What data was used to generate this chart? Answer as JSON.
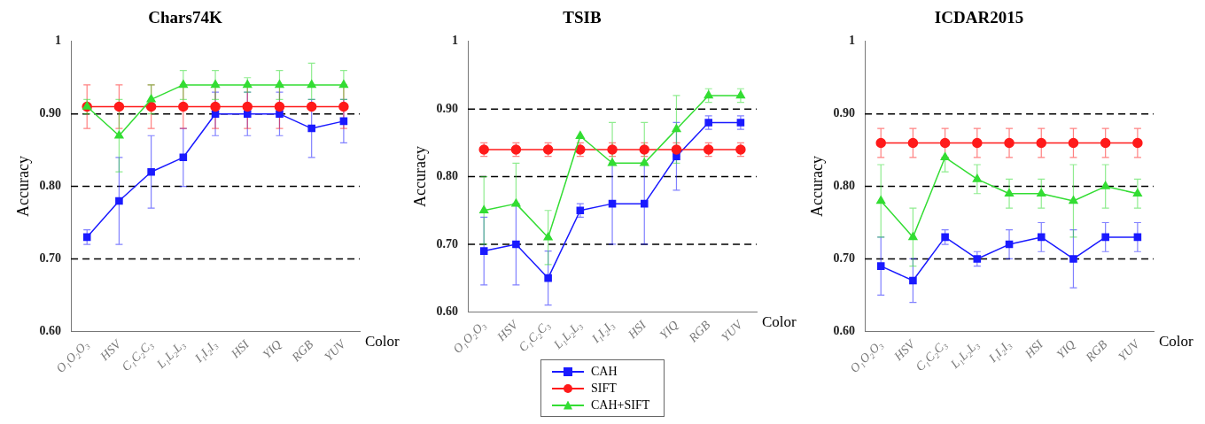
{
  "chart_data": [
    {
      "type": "line",
      "title": "Chars74K",
      "xlabel": "Color",
      "ylabel": "Accuracy",
      "categories": [
        "O₁O₂O₃",
        "HSV",
        "C₁C₂C₃",
        "L₁L₂L₃",
        "I₁I₂I₃",
        "HSI",
        "YIQ",
        "RGB",
        "YUV"
      ],
      "ylim": [
        0.6,
        1
      ],
      "yticks": [
        {
          "value": 0.6,
          "label": "0.60"
        },
        {
          "value": 0.7,
          "label": "0.70"
        },
        {
          "value": 0.8,
          "label": "0.80"
        },
        {
          "value": 0.9,
          "label": "0.90"
        },
        {
          "value": 1,
          "label": "1"
        }
      ],
      "ref_lines": [
        {
          "axis": "y",
          "value": 0.7,
          "color": "#000000",
          "line_style": "dashed"
        },
        {
          "axis": "y",
          "value": 0.8,
          "color": "#000000",
          "line_style": "dashed"
        },
        {
          "axis": "y",
          "value": 0.9,
          "color": "#000000",
          "line_style": "dashed"
        }
      ],
      "series": [
        {
          "color": "#1a1aff",
          "marker": "square",
          "values": [
            0.73,
            0.78,
            0.82,
            0.84,
            0.9,
            0.9,
            0.9,
            0.88,
            0.89
          ],
          "errors": [
            [
              0.72,
              0.74
            ],
            [
              0.72,
              0.84
            ],
            [
              0.77,
              0.87
            ],
            [
              0.8,
              0.88
            ],
            [
              0.87,
              0.93
            ],
            [
              0.87,
              0.93
            ],
            [
              0.87,
              0.93
            ],
            [
              0.84,
              0.92
            ],
            [
              0.86,
              0.92
            ]
          ]
        },
        {
          "color": "#ff1a1a",
          "marker": "circle",
          "values": [
            0.91,
            0.91,
            0.91,
            0.91,
            0.91,
            0.91,
            0.91,
            0.91,
            0.91
          ],
          "errors": [
            0.03,
            0.03,
            0.03,
            0.03,
            0.03,
            0.03,
            0.03,
            null,
            0.03
          ]
        },
        {
          "color": "#33dd33",
          "marker": "triangle",
          "values": [
            0.91,
            0.87,
            0.92,
            0.94,
            0.94,
            0.94,
            0.94,
            0.94,
            0.94
          ],
          "errors": [
            [
              0.9,
              0.92
            ],
            [
              0.82,
              0.92
            ],
            [
              0.9,
              0.94
            ],
            [
              0.92,
              0.96
            ],
            [
              0.92,
              0.96
            ],
            [
              0.93,
              0.95
            ],
            [
              0.92,
              0.96
            ],
            [
              0.92,
              0.97
            ],
            [
              0.92,
              0.96
            ]
          ]
        }
      ]
    },
    {
      "type": "line",
      "title": "TSIB",
      "xlabel": "Color",
      "ylabel": "Accuracy",
      "categories": [
        "O₁O₂O₃",
        "HSV",
        "C₁C₂C₃",
        "L₁L₂L₃",
        "I₁I₂I₃",
        "HSI",
        "YIQ",
        "RGB",
        "YUV"
      ],
      "ylim": [
        0.6,
        1
      ],
      "yticks": [
        {
          "value": 0.6,
          "label": "0.60"
        },
        {
          "value": 0.7,
          "label": "0.70"
        },
        {
          "value": 0.8,
          "label": "0.80"
        },
        {
          "value": 0.9,
          "label": "0.90"
        },
        {
          "value": 1,
          "label": "1"
        }
      ],
      "legend": "bottom",
      "ref_lines": [
        {
          "axis": "y",
          "value": 0.7,
          "color": "#000000",
          "line_style": "dashed"
        },
        {
          "axis": "y",
          "value": 0.8,
          "color": "#000000",
          "line_style": "dashed"
        },
        {
          "axis": "y",
          "value": 0.9,
          "color": "#000000",
          "line_style": "dashed"
        }
      ],
      "series": [
        {
          "name": "CAH",
          "color": "#1a1aff",
          "marker": "square",
          "values": [
            0.69,
            0.7,
            0.65,
            0.75,
            0.76,
            0.76,
            0.83,
            0.88,
            0.88
          ],
          "errors": [
            [
              0.64,
              0.74
            ],
            0.06,
            [
              0.61,
              0.69
            ],
            0.01,
            0.06,
            0.06,
            [
              0.78,
              0.88
            ],
            0.01,
            0.01
          ]
        },
        {
          "name": "SIFT",
          "color": "#ff1a1a",
          "marker": "circle",
          "values": [
            0.84,
            0.84,
            0.84,
            0.84,
            0.84,
            0.84,
            0.84,
            0.84,
            0.84
          ],
          "errors": [
            0.01,
            0.01,
            0.01,
            0.01,
            0.01,
            0.01,
            0.01,
            0.01,
            0.01
          ]
        },
        {
          "name": "CAH+SIFT",
          "color": "#33dd33",
          "marker": "triangle",
          "values": [
            0.75,
            0.76,
            0.71,
            0.86,
            0.82,
            0.82,
            0.87,
            0.92,
            0.92
          ],
          "errors": [
            [
              0.7,
              0.8
            ],
            [
              0.76,
              0.82
            ],
            [
              0.67,
              0.75
            ],
            null,
            [
              0.82,
              0.88
            ],
            [
              0.82,
              0.88
            ],
            [
              0.82,
              0.92
            ],
            0.01,
            0.01
          ]
        }
      ]
    },
    {
      "type": "line",
      "title": "ICDAR2015",
      "xlabel": "Color",
      "ylabel": "Accuracy",
      "categories": [
        "O₁O₂O₃",
        "HSV",
        "C₁C₂C₃",
        "L₁L₂L₃",
        "I₁I₂I₃",
        "HSI",
        "YIQ",
        "RGB",
        "YUV"
      ],
      "ylim": [
        0.6,
        1
      ],
      "yticks": [
        {
          "value": 0.6,
          "label": "0.60"
        },
        {
          "value": 0.7,
          "label": "0.70"
        },
        {
          "value": 0.8,
          "label": "0.80"
        },
        {
          "value": 0.9,
          "label": "0.90"
        },
        {
          "value": 1,
          "label": "1"
        }
      ],
      "ref_lines": [
        {
          "axis": "y",
          "value": 0.7,
          "color": "#000000",
          "line_style": "dashed"
        },
        {
          "axis": "y",
          "value": 0.8,
          "color": "#000000",
          "line_style": "dashed"
        },
        {
          "axis": "y",
          "value": 0.9,
          "color": "#000000",
          "line_style": "dashed"
        }
      ],
      "series": [
        {
          "color": "#1a1aff",
          "marker": "square",
          "values": [
            0.69,
            0.67,
            0.73,
            0.7,
            0.72,
            0.73,
            0.7,
            0.73,
            0.73
          ],
          "errors": [
            [
              0.65,
              0.73
            ],
            [
              0.64,
              0.7
            ],
            0.01,
            0.01,
            0.02,
            0.02,
            [
              0.66,
              0.74
            ],
            0.02,
            0.02
          ]
        },
        {
          "color": "#ff1a1a",
          "marker": "circle",
          "values": [
            0.86,
            0.86,
            0.86,
            0.86,
            0.86,
            0.86,
            0.86,
            0.86,
            0.86
          ],
          "errors": [
            0.02,
            0.02,
            0.02,
            0.02,
            0.02,
            0.02,
            0.02,
            0.02,
            0.02
          ]
        },
        {
          "color": "#33dd33",
          "marker": "triangle",
          "values": [
            0.78,
            0.73,
            0.84,
            0.81,
            0.79,
            0.79,
            0.78,
            0.8,
            0.79
          ],
          "errors": [
            [
              0.73,
              0.83
            ],
            [
              0.69,
              0.77
            ],
            [
              0.82,
              0.84
            ],
            0.02,
            0.02,
            0.02,
            [
              0.73,
              0.83
            ],
            [
              0.77,
              0.83
            ],
            0.02
          ]
        }
      ]
    }
  ]
}
